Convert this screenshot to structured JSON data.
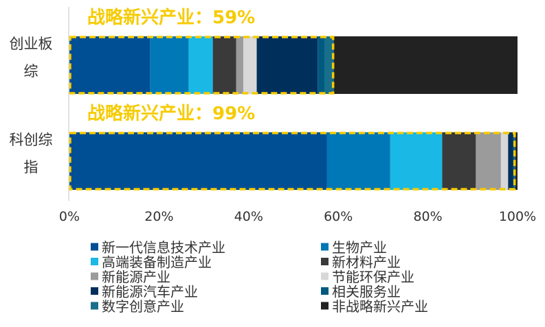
{
  "chart_data": {
    "type": "bar",
    "orientation": "horizontal",
    "stacked": true,
    "categories": [
      "创业板综",
      "科创综指"
    ],
    "category_label_lines": [
      [
        "创业板",
        "综"
      ],
      [
        "科创综",
        "指"
      ]
    ],
    "strategic_labels": [
      "战略新兴产业：59%",
      "战略新兴产业：99%"
    ],
    "series": [
      {
        "name": "新一代信息技术产业",
        "color": "#004E93",
        "values": [
          18,
          57.5
        ]
      },
      {
        "name": "生物产业",
        "color": "#0077B6",
        "values": [
          8.6,
          14.1
        ]
      },
      {
        "name": "高端装备制造产业",
        "color": "#1AB8E5",
        "values": [
          5.4,
          11.6
        ]
      },
      {
        "name": "新材料产业",
        "color": "#3A3A3A",
        "values": [
          5.2,
          7.5
        ]
      },
      {
        "name": "新能源产业",
        "color": "#9B9B9B",
        "values": [
          1.6,
          5.6
        ]
      },
      {
        "name": "节能环保产业",
        "color": "#D8D8D8",
        "values": [
          3,
          1.6
        ]
      },
      {
        "name": "新能源汽车产业",
        "color": "#002F5C",
        "values": [
          13.6,
          1.1
        ]
      },
      {
        "name": "相关服务业",
        "color": "#005A80",
        "values": [
          1.5,
          0.3
        ]
      },
      {
        "name": "数字创意产业",
        "color": "#176F8C",
        "values": [
          2.1,
          0.2
        ]
      },
      {
        "name": "非战略新兴产业",
        "color": "#222222",
        "values": [
          41,
          0.5
        ]
      }
    ],
    "x_ticks": [
      "0%",
      "20%",
      "40%",
      "60%",
      "80%",
      "100%"
    ],
    "xlim": [
      0,
      100
    ],
    "highlight_color": "#F6CB00",
    "legend_position": "bottom"
  }
}
